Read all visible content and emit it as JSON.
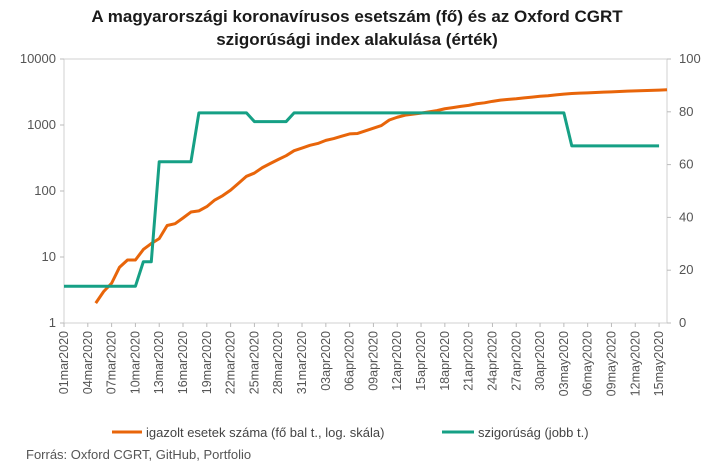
{
  "chart_data": {
    "type": "line",
    "title": [
      "A magyarországi koronavírusos esetszám (fő) és az Oxford CGRT",
      "szigorúsági index alakulása (érték)"
    ],
    "x_tick_labels": [
      "01mar2020",
      "04mar2020",
      "07mar2020",
      "10mar2020",
      "13mar2020",
      "16mar2020",
      "19mar2020",
      "22mar2020",
      "25mar2020",
      "28mar2020",
      "31mar2020",
      "03apr2020",
      "06apr2020",
      "09apr2020",
      "12apr2020",
      "15apr2020",
      "18apr2020",
      "21apr2020",
      "24apr2020",
      "27apr2020",
      "30apr2020",
      "03may2020",
      "06may2020",
      "09may2020",
      "12may2020",
      "15may2020"
    ],
    "y_left": {
      "scale": "log",
      "range": [
        1,
        10000
      ],
      "tick_labels": [
        "1",
        "10",
        "100",
        "1000",
        "10000"
      ]
    },
    "y_right": {
      "scale": "linear",
      "range": [
        0,
        100
      ],
      "tick_labels": [
        "0",
        "20",
        "40",
        "60",
        "80",
        "100"
      ]
    },
    "grid": false,
    "legend_position": "bottom",
    "series": [
      {
        "name": "igazolt esetek száma (fő bal t., log. skála)",
        "axis": "left",
        "color": "#e8650a",
        "values": [
          null,
          null,
          null,
          null,
          2,
          3,
          4,
          7,
          9,
          9,
          13,
          16,
          19,
          30,
          32,
          39,
          48,
          50,
          58,
          73,
          85,
          103,
          131,
          167,
          187,
          226,
          261,
          300,
          343,
          408,
          447,
          492,
          525,
          585,
          623,
          678,
          733,
          744,
          817,
          895,
          980,
          1190,
          1310,
          1410,
          1458,
          1512,
          1579,
          1652,
          1763,
          1834,
          1916,
          1984,
          2098,
          2168,
          2284,
          2383,
          2443,
          2500,
          2575,
          2649,
          2727,
          2775,
          2863,
          2942,
          2998,
          3035,
          3065,
          3111,
          3150,
          3178,
          3213,
          3263,
          3284,
          3313,
          3341,
          3380,
          3417
        ]
      },
      {
        "name": "szigorúság (jobb t.)",
        "axis": "right",
        "color": "#16a085",
        "values": [
          13.9,
          13.9,
          13.9,
          13.9,
          13.9,
          13.9,
          13.9,
          13.9,
          13.9,
          13.9,
          23.2,
          23.2,
          61.1,
          61.1,
          61.1,
          61.1,
          61.1,
          79.6,
          79.6,
          79.6,
          79.6,
          79.6,
          79.6,
          79.6,
          76.3,
          76.3,
          76.3,
          76.3,
          76.3,
          79.6,
          79.6,
          79.6,
          79.6,
          79.6,
          79.6,
          79.6,
          79.6,
          79.6,
          79.6,
          79.6,
          79.6,
          79.6,
          79.6,
          79.6,
          79.6,
          79.6,
          79.6,
          79.6,
          79.6,
          79.6,
          79.6,
          79.6,
          79.6,
          79.6,
          79.6,
          79.6,
          79.6,
          79.6,
          79.6,
          79.6,
          79.6,
          79.6,
          79.6,
          79.6,
          67.1,
          67.1,
          67.1,
          67.1,
          67.1,
          67.1,
          67.1,
          67.1,
          67.1,
          67.1,
          67.1,
          67.1
        ]
      }
    ],
    "source": "Forrás: Oxford CGRT, GitHub, Portfolio"
  }
}
